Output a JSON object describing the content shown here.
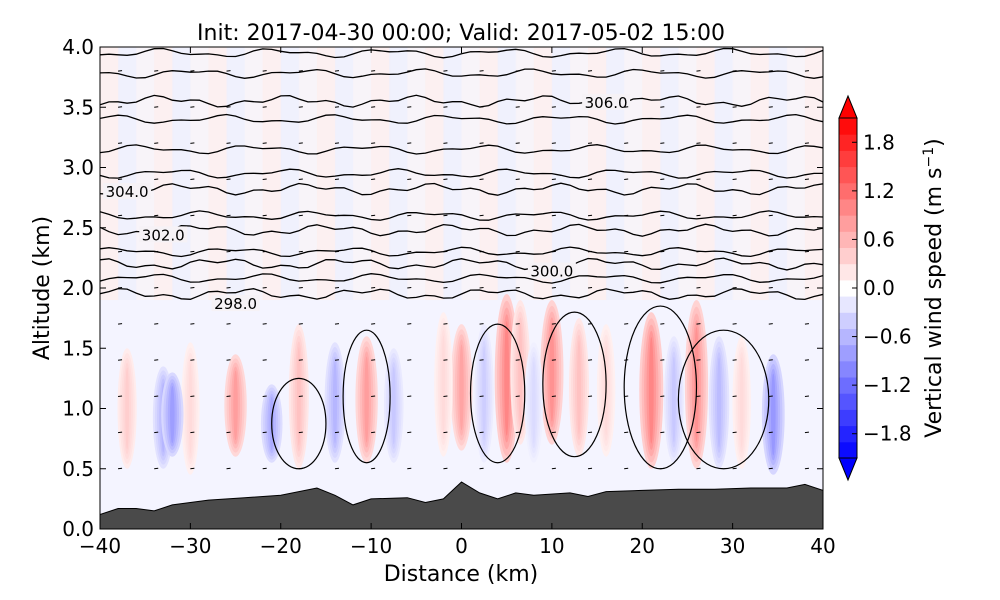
{
  "chart_data": {
    "type": "contour-cross-section",
    "title": "Init: 2017-04-30 00:00; Valid: 2017-05-02 15:00",
    "xlabel": "Distance (km)",
    "ylabel": "Altitude (km)",
    "xlim": [
      -40,
      40
    ],
    "ylim": [
      0,
      4
    ],
    "xticks": [
      -40,
      -30,
      -20,
      -10,
      0,
      10,
      20,
      30,
      40
    ],
    "xtick_labels": [
      "−40",
      "−30",
      "−20",
      "−10",
      "0",
      "10",
      "20",
      "30",
      "40"
    ],
    "yticks": [
      0,
      0.5,
      1,
      1.5,
      2,
      2.5,
      3,
      3.5,
      4
    ],
    "ytick_labels": [
      "0.0",
      "0.5",
      "1.0",
      "1.5",
      "2.0",
      "2.5",
      "3.0",
      "3.5",
      "4.0"
    ],
    "colorbar": {
      "label": "Vertical wind speed (m s⁻¹)",
      "label_parts": [
        "Vertical wind speed (m s",
        "−1",
        ")"
      ],
      "range": [
        -2.1,
        2.1
      ],
      "ticks": [
        1.8,
        1.2,
        0.6,
        0.0,
        -0.6,
        -1.2,
        -1.8
      ],
      "tick_labels": [
        "1.8",
        "1.2",
        "0.6",
        "0.0",
        "−0.6",
        "−1.2",
        "−1.8"
      ],
      "colormap": "bwr",
      "levels": 21
    },
    "theta_contours": [
      {
        "label": "298.0",
        "label_x": -25,
        "label_y": 1.85,
        "base_alt": 1.95
      },
      {
        "label": "300.0",
        "label_x": 10,
        "label_y": 2.12,
        "base_alt": 2.2
      },
      {
        "label": "302.0",
        "label_x": -33,
        "label_y": 2.42,
        "base_alt": 2.48
      },
      {
        "label": "304.0",
        "label_x": -37,
        "label_y": 2.78,
        "base_alt": 2.82
      },
      {
        "label": "306.0",
        "label_x": 16,
        "label_y": 3.52,
        "base_alt": 3.55
      }
    ],
    "theta_unlabeled_levels_km": [
      2.08,
      2.3,
      2.6,
      2.95,
      3.15,
      3.4,
      3.78,
      3.95
    ],
    "updraft_cores": [
      {
        "x": 5,
        "top": 1.95,
        "bottom": 0.55,
        "w": 1.0
      },
      {
        "x": 6.5,
        "top": 1.9,
        "bottom": 0.7,
        "w": 0.5
      },
      {
        "x": 10,
        "top": 1.9,
        "bottom": 0.7,
        "w": 0.9
      },
      {
        "x": 13,
        "top": 1.75,
        "bottom": 0.6,
        "w": 0.5
      },
      {
        "x": 21,
        "top": 1.8,
        "bottom": 0.5,
        "w": 1.0
      },
      {
        "x": 26,
        "top": 1.9,
        "bottom": 0.5,
        "w": 0.9
      },
      {
        "x": 0,
        "top": 1.7,
        "bottom": 0.65,
        "w": 0.75
      },
      {
        "x": -10.5,
        "top": 1.6,
        "bottom": 0.55,
        "w": 0.8
      },
      {
        "x": -25,
        "top": 1.45,
        "bottom": 0.6,
        "w": 0.8
      },
      {
        "x": -18,
        "top": 1.7,
        "bottom": 0.5,
        "w": 0.5
      },
      {
        "x": -37,
        "top": 1.5,
        "bottom": 0.5,
        "w": 0.4
      },
      {
        "x": -30,
        "top": 1.55,
        "bottom": 0.45,
        "w": 0.3
      },
      {
        "x": -2,
        "top": 1.8,
        "bottom": 0.6,
        "w": 0.3
      },
      {
        "x": 16,
        "top": 1.7,
        "bottom": 0.6,
        "w": 0.3
      },
      {
        "x": 31,
        "top": 1.6,
        "bottom": 0.5,
        "w": 0.3
      }
    ],
    "downdraft_cores": [
      {
        "x": -33,
        "top": 1.35,
        "bottom": 0.5,
        "w": -0.6
      },
      {
        "x": -32,
        "top": 1.3,
        "bottom": 0.6,
        "w": -0.8
      },
      {
        "x": -21,
        "top": 1.2,
        "bottom": 0.55,
        "w": -0.7
      },
      {
        "x": -14,
        "top": 1.55,
        "bottom": 0.55,
        "w": -0.6
      },
      {
        "x": -7.5,
        "top": 1.5,
        "bottom": 0.55,
        "w": -0.45
      },
      {
        "x": 2.5,
        "top": 1.7,
        "bottom": 0.55,
        "w": -0.4
      },
      {
        "x": 8,
        "top": 1.55,
        "bottom": 0.55,
        "w": -0.3
      },
      {
        "x": 23.5,
        "top": 1.6,
        "bottom": 0.55,
        "w": -0.45
      },
      {
        "x": 28.5,
        "top": 1.6,
        "bottom": 0.5,
        "w": -0.55
      },
      {
        "x": 34.5,
        "top": 1.45,
        "bottom": 0.45,
        "w": -0.85
      }
    ],
    "terrain": [
      [
        -40,
        0.12
      ],
      [
        -38,
        0.17
      ],
      [
        -36,
        0.17
      ],
      [
        -34,
        0.15
      ],
      [
        -32,
        0.2
      ],
      [
        -28,
        0.24
      ],
      [
        -24,
        0.26
      ],
      [
        -20,
        0.28
      ],
      [
        -16,
        0.34
      ],
      [
        -14,
        0.28
      ],
      [
        -12,
        0.2
      ],
      [
        -10,
        0.25
      ],
      [
        -6,
        0.26
      ],
      [
        -4,
        0.22
      ],
      [
        -2,
        0.25
      ],
      [
        0,
        0.39
      ],
      [
        2,
        0.3
      ],
      [
        4,
        0.25
      ],
      [
        6,
        0.3
      ],
      [
        8,
        0.28
      ],
      [
        12,
        0.3
      ],
      [
        14,
        0.27
      ],
      [
        16,
        0.31
      ],
      [
        20,
        0.32
      ],
      [
        24,
        0.33
      ],
      [
        28,
        0.33
      ],
      [
        32,
        0.34
      ],
      [
        36,
        0.34
      ],
      [
        38,
        0.37
      ],
      [
        40,
        0.32
      ]
    ],
    "terrain_color": "#4a4a4a"
  }
}
